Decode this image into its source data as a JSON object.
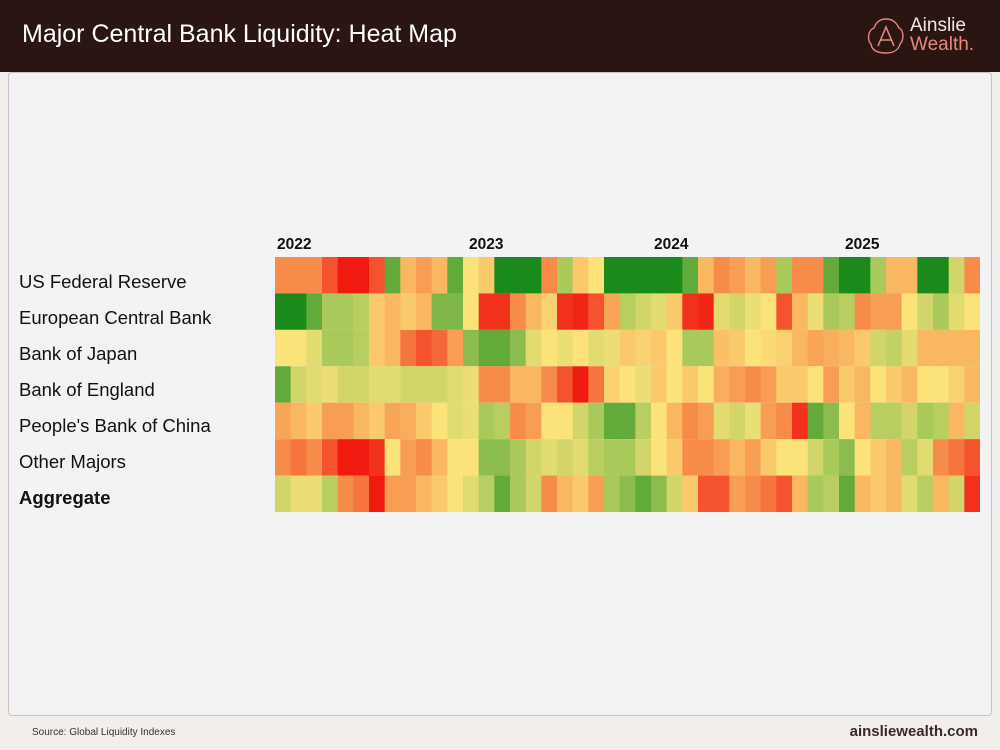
{
  "header": {
    "title": "Major Central Bank Liquidity: Heat Map",
    "logo_line1": "Ainslie",
    "logo_line2": "Wealth."
  },
  "footer": {
    "source": "Source: Global Liquidity Indexes",
    "url": "ainsliewealth.com"
  },
  "chart_data": {
    "type": "heatmap",
    "title": "",
    "x_tick_labels": [
      "2022",
      "2023",
      "2024",
      "2025"
    ],
    "x_start": "2022-01",
    "x_end": "2025-09",
    "frequency": "monthly",
    "color_scale": {
      "min": -2,
      "max": 2,
      "colors": [
        "#f01a10",
        "#f78b4a",
        "#fbe37a",
        "#a9c95a",
        "#1a8a1a"
      ]
    },
    "rows": [
      {
        "name": "US Federal Reserve",
        "values": [
          -1,
          -1,
          -1,
          -1.5,
          -2,
          -2,
          -1.5,
          1.5,
          -0.5,
          -0.8,
          -0.5,
          1.5,
          0,
          -0.3,
          2,
          2,
          2,
          -1,
          1,
          -0.3,
          0,
          2,
          2,
          2,
          2,
          2,
          1.5,
          -0.5,
          -1,
          -0.8,
          -0.5,
          -0.8,
          1,
          -1,
          -1,
          1.5,
          2,
          2,
          1,
          -0.5,
          -0.5,
          2,
          2,
          0.5,
          -1
        ]
      },
      {
        "name": "European Central Bank",
        "values": [
          2,
          2,
          1.5,
          1,
          1,
          0.8,
          -0.3,
          -0.5,
          -0.3,
          -0.5,
          1.3,
          1.3,
          0,
          -1.8,
          -1.8,
          -1,
          -0.5,
          -0.2,
          -1.8,
          -1.9,
          -1.5,
          -0.7,
          0.8,
          0.5,
          0.3,
          -0.3,
          -1.8,
          -1.9,
          0.3,
          0.5,
          0.2,
          0,
          -1.5,
          -0.5,
          0.2,
          1,
          0.8,
          -1,
          -0.8,
          -0.8,
          0,
          0.5,
          1,
          0.3,
          0
        ]
      },
      {
        "name": "Bank of Japan",
        "values": [
          0,
          0,
          0.3,
          1,
          1,
          0.8,
          -0.3,
          -0.5,
          -1.2,
          -1.5,
          -1.3,
          -0.8,
          1.2,
          1.5,
          1.5,
          1.2,
          0.3,
          0,
          0.2,
          0,
          0.3,
          0.2,
          -0.3,
          -0.2,
          -0.3,
          0,
          1,
          1,
          -0.4,
          -0.3,
          0,
          -0.1,
          -0.2,
          -0.5,
          -0.7,
          -0.6,
          -0.5,
          -0.3,
          0.5,
          0.7,
          0.3,
          -0.5,
          -0.5,
          -0.5,
          -0.5
        ]
      },
      {
        "name": "Bank of England",
        "values": [
          1.5,
          0.5,
          0.3,
          0.2,
          0.5,
          0.5,
          0.3,
          0.3,
          0.5,
          0.5,
          0.5,
          0.3,
          0.2,
          -1,
          -1,
          -0.5,
          -0.5,
          -1,
          -1.5,
          -2,
          -1.2,
          -0.2,
          0,
          0.2,
          -0.3,
          0,
          -0.3,
          0,
          -0.6,
          -0.8,
          -1,
          -0.8,
          -0.3,
          -0.3,
          0,
          -0.8,
          -0.3,
          -0.5,
          0,
          -0.3,
          -0.5,
          0,
          0,
          -0.2,
          -0.5
        ]
      },
      {
        "name": "People's Bank of China",
        "values": [
          -0.7,
          -0.5,
          -0.3,
          -0.8,
          -0.8,
          -0.5,
          -0.3,
          -0.7,
          -0.6,
          -0.3,
          0,
          0.3,
          0.2,
          1,
          0.8,
          -1,
          -0.8,
          0,
          0,
          0.5,
          1,
          1.5,
          1.5,
          0.8,
          0,
          -0.5,
          -1,
          -0.8,
          0.3,
          0.5,
          0.2,
          -0.8,
          -1,
          -1.8,
          1.5,
          1.2,
          0,
          -0.5,
          0.8,
          0.8,
          0.5,
          1,
          0.8,
          -0.5,
          0.5
        ]
      },
      {
        "name": "Other Majors",
        "values": [
          -1,
          -1.2,
          -1,
          -1.5,
          -2,
          -2,
          -1.8,
          0,
          -0.8,
          -1,
          -0.5,
          0,
          0,
          1.2,
          1.2,
          1,
          0.5,
          0.3,
          0.5,
          0.3,
          0.8,
          1,
          1,
          0.5,
          0,
          -0.3,
          -1,
          -1,
          -0.8,
          -0.5,
          -0.8,
          -0.3,
          0,
          0,
          0.5,
          1,
          1.2,
          0,
          -0.3,
          -0.5,
          0.8,
          0.3,
          -1,
          -1.2,
          -1.5
        ]
      },
      {
        "name": "Aggregate",
        "values": [
          0.5,
          0.2,
          0.2,
          0.8,
          -1,
          -1.2,
          -2,
          -0.8,
          -0.8,
          -0.5,
          -0.3,
          0,
          0.3,
          0.8,
          1.5,
          1,
          0.5,
          -1,
          -0.5,
          -0.3,
          -0.8,
          1,
          1.2,
          1.5,
          1.2,
          0.5,
          -0.3,
          -1.5,
          -1.5,
          -0.8,
          -1,
          -1.2,
          -1.5,
          -0.5,
          1,
          0.8,
          1.5,
          -0.5,
          -0.3,
          -0.5,
          0.3,
          0.8,
          -0.5,
          0.5,
          -1.8
        ]
      }
    ]
  }
}
